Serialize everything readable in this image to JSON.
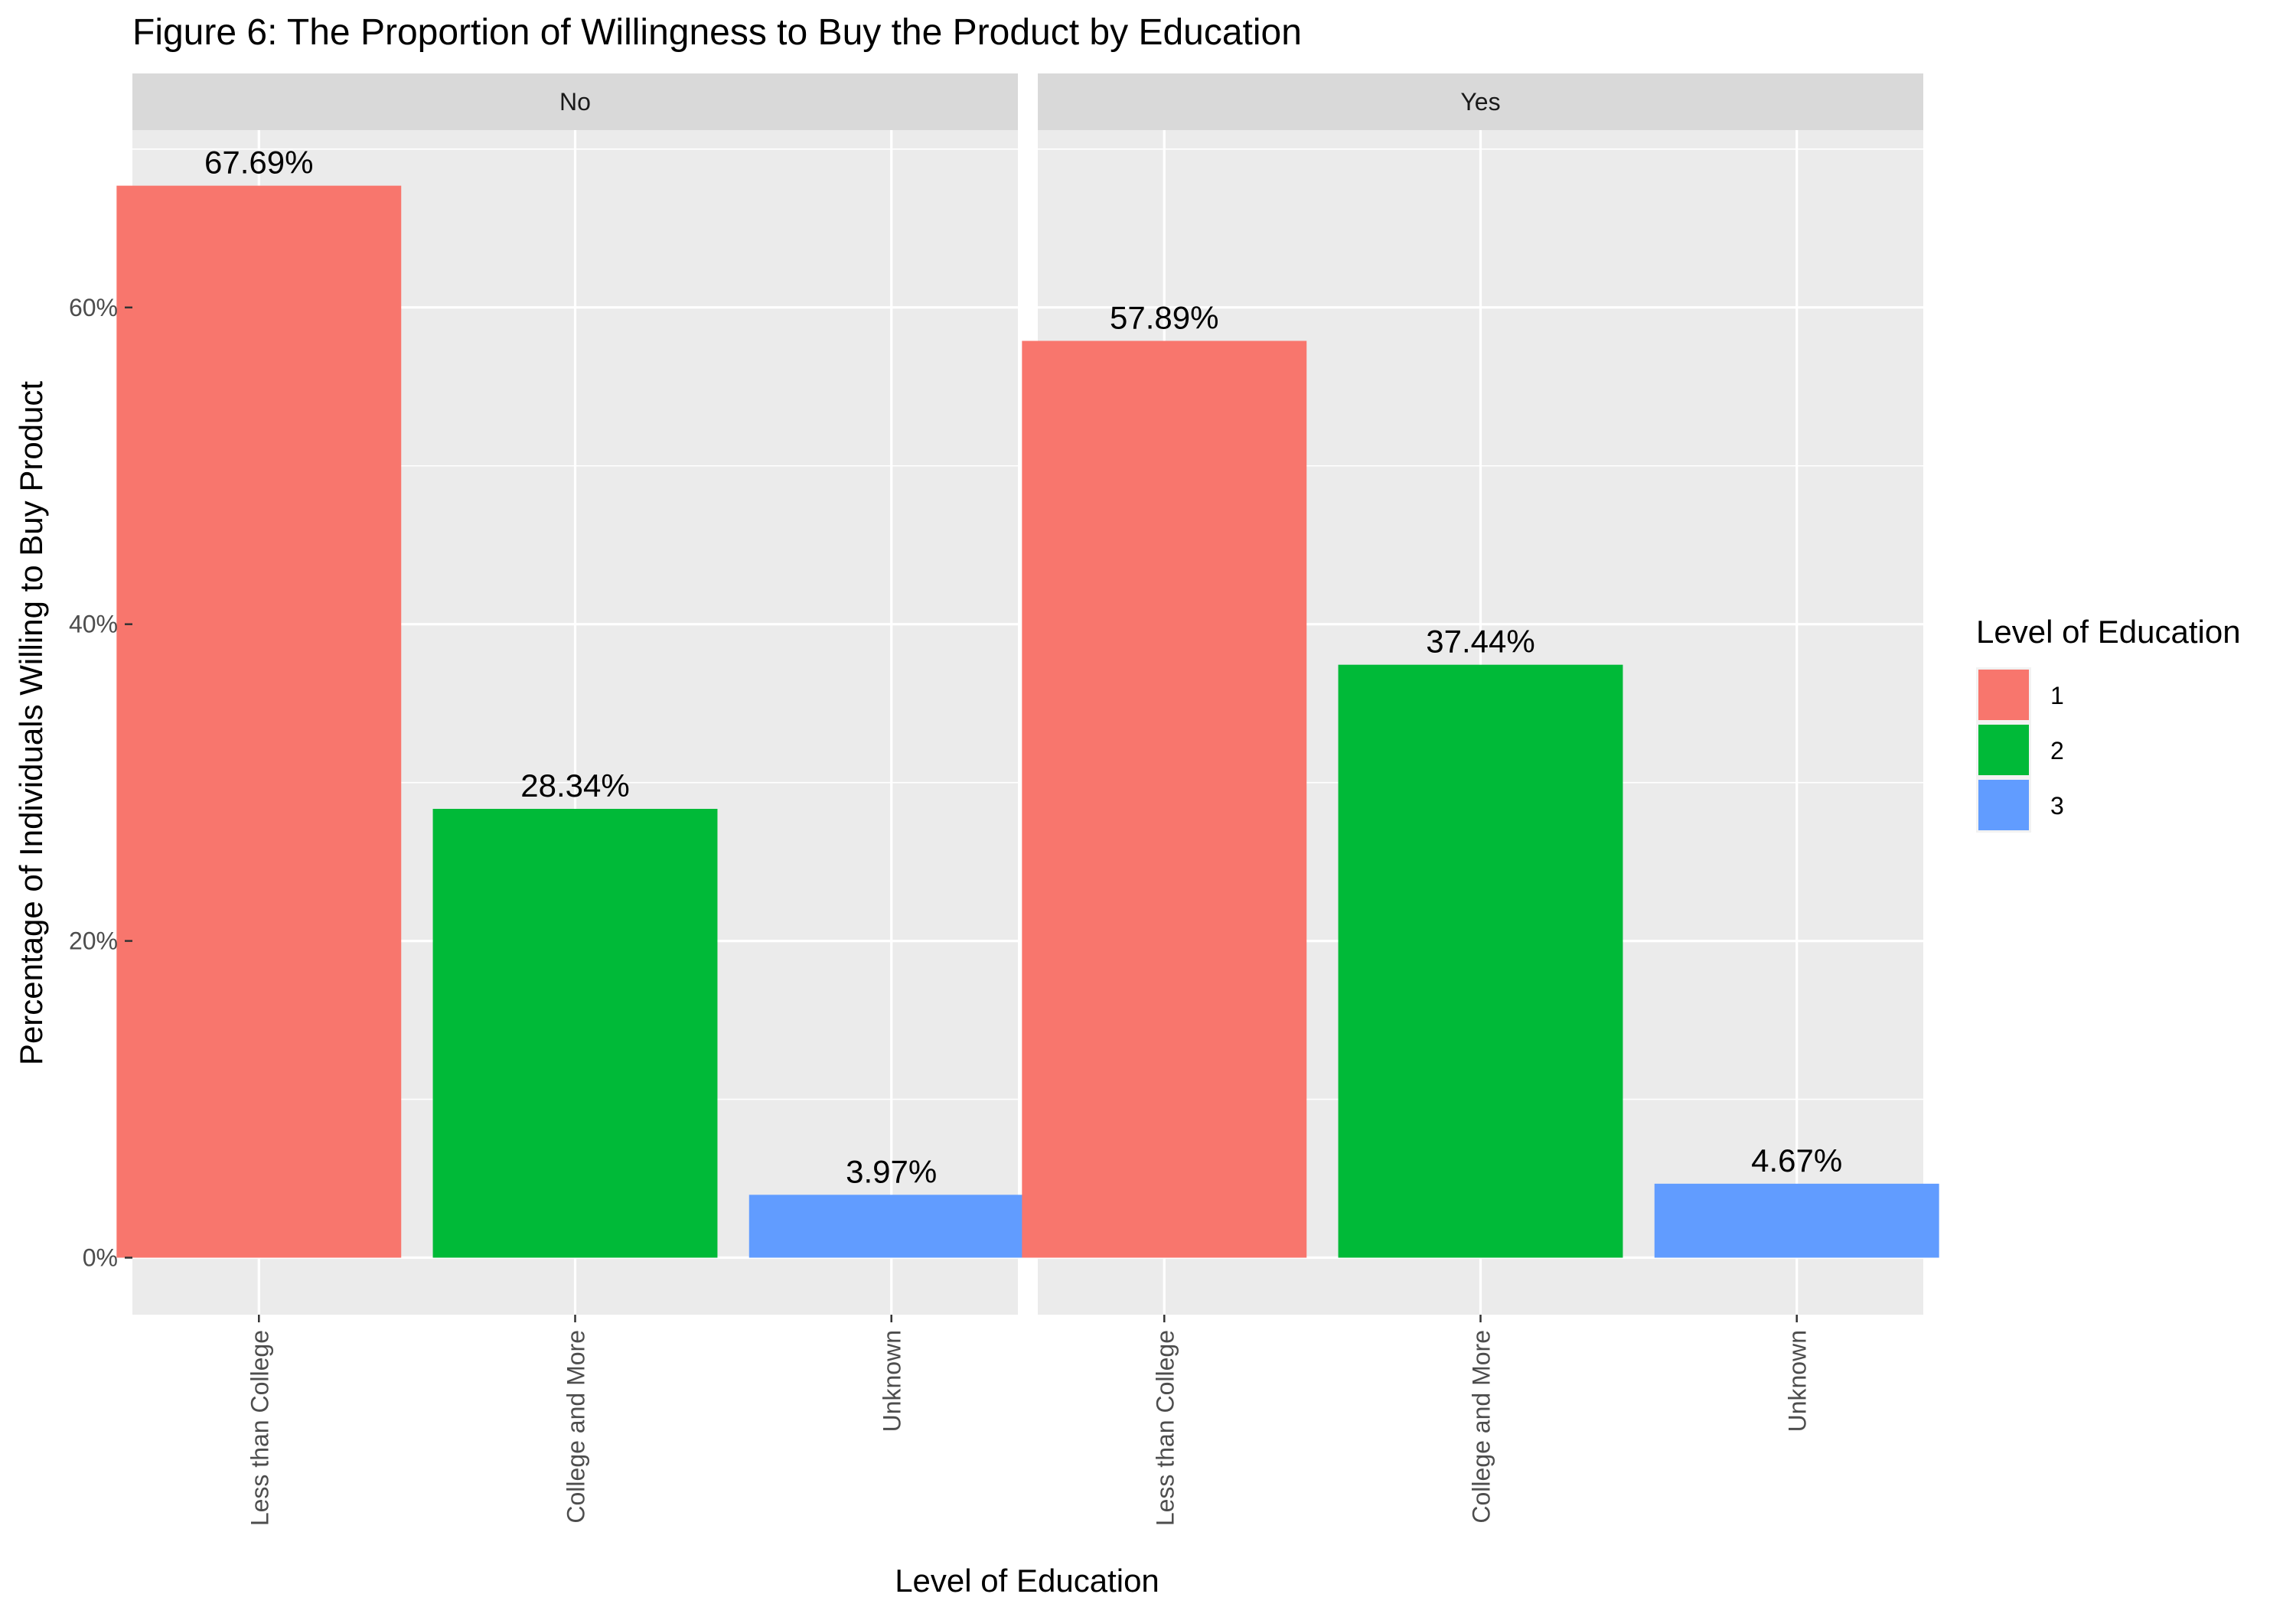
{
  "chart_data": {
    "type": "bar",
    "title": "Figure 6: The Proportion of Willingness to Buy the Product by Education",
    "xlabel": "Level of Education",
    "ylabel": "Percentage of Individuals Willing to Buy Product",
    "ylim": [
      -3.6,
      71.2
    ],
    "yticks": [
      0,
      20,
      40,
      60
    ],
    "ytick_labels": [
      "0%",
      "20%",
      "40%",
      "60%"
    ],
    "categories": [
      "Less than College",
      "College and More",
      "Unknown"
    ],
    "facets": [
      {
        "label": "No",
        "values": [
          67.69,
          28.34,
          3.97
        ],
        "value_labels": [
          "67.69%",
          "28.34%",
          "3.97%"
        ]
      },
      {
        "label": "Yes",
        "values": [
          57.89,
          37.44,
          4.67
        ],
        "value_labels": [
          "57.89%",
          "37.44%",
          "4.67%"
        ]
      }
    ],
    "legend": {
      "title": "Level of Education",
      "position": "right",
      "items": [
        {
          "label": "1",
          "color": "#F8766D"
        },
        {
          "label": "2",
          "color": "#00BA38"
        },
        {
          "label": "3",
          "color": "#619CFF"
        }
      ]
    },
    "grid": true,
    "colors": {
      "panel_bg": "#EBEBEB",
      "strip_bg": "#D9D9D9",
      "grid_major": "#FFFFFF"
    }
  }
}
